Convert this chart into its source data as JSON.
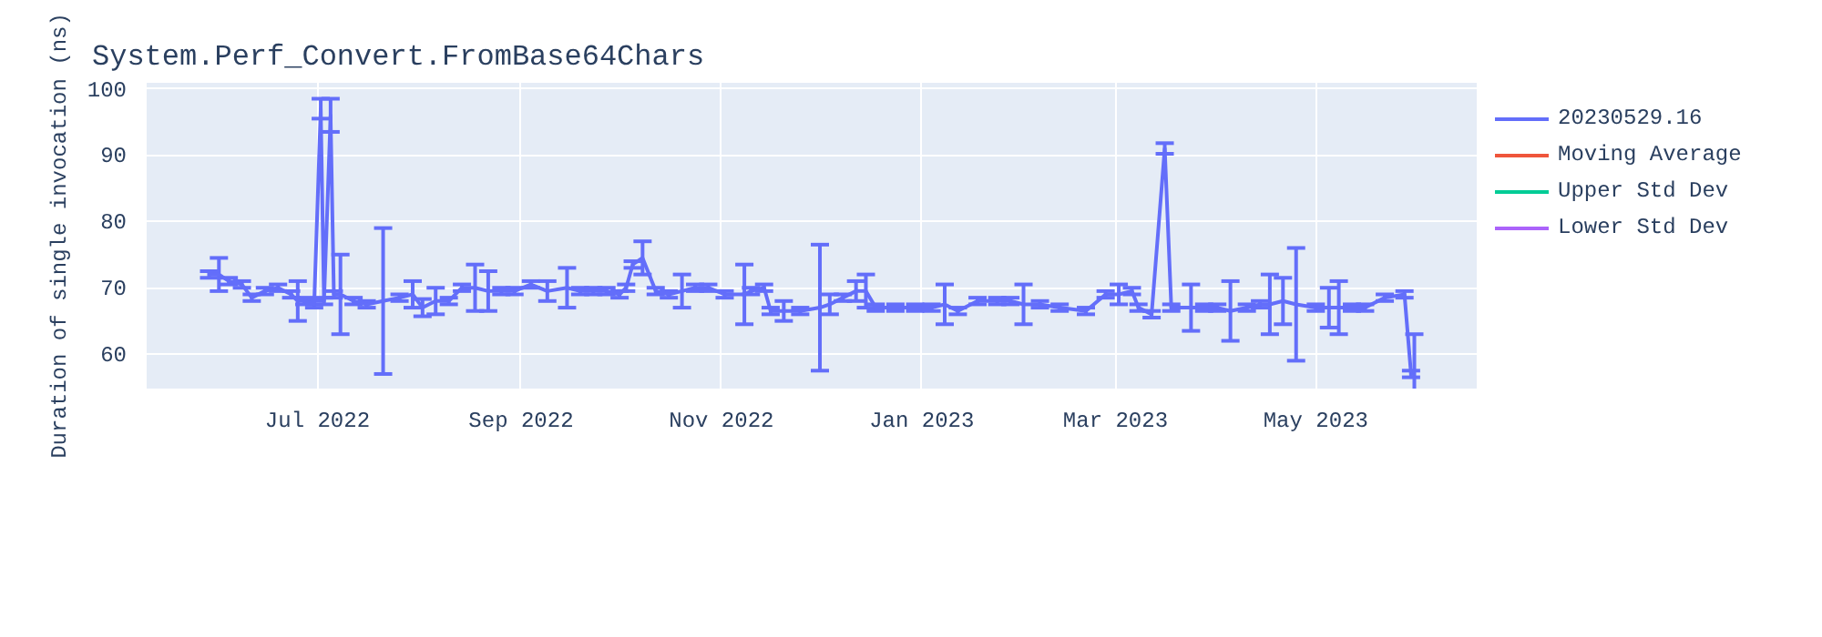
{
  "chart_data": {
    "type": "line",
    "title": "System.Perf_Convert.FromBase64Chars",
    "ylabel": "Duration of single invocation (ns)",
    "x": [
      "2022-05-29",
      "2022-06-01",
      "2022-06-04",
      "2022-06-08",
      "2022-06-11",
      "2022-06-15",
      "2022-06-19",
      "2022-06-23",
      "2022-06-25",
      "2022-06-27",
      "2022-06-30",
      "2022-07-02",
      "2022-07-03",
      "2022-07-05",
      "2022-07-06",
      "2022-07-08",
      "2022-07-12",
      "2022-07-16",
      "2022-07-21",
      "2022-07-26",
      "2022-07-30",
      "2022-08-02",
      "2022-08-06",
      "2022-08-10",
      "2022-08-14",
      "2022-08-18",
      "2022-08-22",
      "2022-08-26",
      "2022-08-30",
      "2022-09-04",
      "2022-09-09",
      "2022-09-15",
      "2022-09-19",
      "2022-09-23",
      "2022-09-27",
      "2022-10-01",
      "2022-10-03",
      "2022-10-05",
      "2022-10-08",
      "2022-10-12",
      "2022-10-16",
      "2022-10-20",
      "2022-10-24",
      "2022-10-28",
      "2022-11-02",
      "2022-11-08",
      "2022-11-10",
      "2022-11-14",
      "2022-11-16",
      "2022-11-20",
      "2022-11-25",
      "2022-12-01",
      "2022-12-04",
      "2022-12-08",
      "2022-12-12",
      "2022-12-15",
      "2022-12-18",
      "2022-12-24",
      "2022-12-30",
      "2023-01-04",
      "2023-01-08",
      "2023-01-12",
      "2023-01-18",
      "2023-01-24",
      "2023-01-28",
      "2023-02-01",
      "2023-02-06",
      "2023-02-12",
      "2023-02-20",
      "2023-02-26",
      "2023-03-02",
      "2023-03-06",
      "2023-03-08",
      "2023-03-12",
      "2023-03-16",
      "2023-03-18",
      "2023-03-24",
      "2023-03-28",
      "2023-04-01",
      "2023-04-05",
      "2023-04-10",
      "2023-04-14",
      "2023-04-17",
      "2023-04-21",
      "2023-04-25",
      "2023-05-01",
      "2023-05-05",
      "2023-05-08",
      "2023-05-12",
      "2023-05-16",
      "2023-05-22",
      "2023-05-28",
      "2023-05-30",
      "2023-05-31"
    ],
    "series": [
      {
        "name": "20230529.16",
        "color": "#636efa",
        "values": [
          72,
          72,
          71,
          70.5,
          68.5,
          69.5,
          70,
          69,
          68,
          68,
          67.5,
          97,
          68,
          96,
          69,
          69,
          68,
          67.5,
          68,
          68.5,
          69,
          67,
          68,
          68,
          70,
          70,
          69.5,
          69.5,
          69.5,
          70.5,
          69.5,
          70,
          69.5,
          69.5,
          69.5,
          69,
          70,
          73.5,
          74.5,
          69.5,
          69,
          69.5,
          70,
          70,
          69,
          69,
          69.5,
          70,
          66.5,
          66.5,
          66.5,
          67,
          67.5,
          68.5,
          69.5,
          69.5,
          67,
          67,
          67,
          67,
          67.5,
          66.5,
          68,
          68,
          68,
          67.5,
          67.5,
          67,
          66.5,
          69,
          69,
          69.5,
          67,
          66,
          91,
          67,
          67,
          67,
          67,
          66.5,
          67,
          67.5,
          67.5,
          68,
          67.5,
          67,
          67,
          67,
          67,
          67,
          68.5,
          69,
          57,
          57.5
        ],
        "errors": [
          0.5,
          2.5,
          0.5,
          0.5,
          0.5,
          0.5,
          0.5,
          0.5,
          3,
          0.5,
          0.5,
          1.5,
          0.5,
          2.5,
          0.5,
          6,
          0.5,
          0.5,
          11,
          0.5,
          2,
          1.3,
          2,
          0.5,
          0.5,
          3.5,
          3,
          0.5,
          0.5,
          0.5,
          1.5,
          3,
          0.5,
          0.5,
          0.5,
          0.5,
          0.5,
          0.5,
          2.5,
          0.5,
          0.5,
          2.5,
          0.5,
          0.5,
          0.5,
          4.5,
          0.5,
          0.5,
          0.5,
          1.5,
          0.5,
          9.5,
          1.5,
          0.5,
          1.5,
          2.5,
          0.5,
          0.5,
          0.5,
          0.5,
          3,
          0.5,
          0.5,
          0.5,
          0.5,
          3,
          0.5,
          0.5,
          0.5,
          0.5,
          1.5,
          0.5,
          0.5,
          0.5,
          0.8,
          0.5,
          3.5,
          0.5,
          0.5,
          4.5,
          0.5,
          0.5,
          4.5,
          3.5,
          8.5,
          0.5,
          3,
          4,
          0.5,
          0.5,
          0.5,
          0.5,
          0.5,
          5.5
        ]
      },
      {
        "name": "Moving Average",
        "color": "#ef553b",
        "values": [
          null,
          null,
          null,
          null,
          null,
          null,
          null,
          null,
          null,
          null,
          null,
          null,
          null,
          null,
          null,
          null,
          null,
          null,
          null,
          null,
          null,
          null,
          null,
          null,
          null,
          null,
          null,
          null,
          null,
          null,
          null,
          null,
          null,
          null,
          null,
          null,
          null,
          null,
          null,
          null,
          null,
          null,
          null,
          null,
          null,
          null,
          null,
          null,
          null,
          null,
          null,
          null,
          null,
          null,
          null,
          null,
          null,
          null,
          null,
          null,
          null,
          null,
          null,
          null,
          null,
          null,
          null,
          null,
          null,
          null,
          null,
          null,
          null,
          null,
          null,
          null,
          null,
          null,
          null,
          null,
          null,
          null,
          null,
          null,
          null,
          null,
          null,
          null,
          null,
          null,
          null,
          null,
          null,
          null
        ]
      },
      {
        "name": "Upper Std Dev",
        "color": "#00cc96",
        "values": [
          null,
          null,
          null,
          null,
          null,
          null,
          null,
          null,
          null,
          null,
          null,
          null,
          null,
          null,
          null,
          null,
          null,
          null,
          null,
          null,
          null,
          null,
          null,
          null,
          null,
          null,
          null,
          null,
          null,
          null,
          null,
          null,
          null,
          null,
          null,
          null,
          null,
          null,
          null,
          null,
          null,
          null,
          null,
          null,
          null,
          null,
          null,
          null,
          null,
          null,
          null,
          null,
          null,
          null,
          null,
          null,
          null,
          null,
          null,
          null,
          null,
          null,
          null,
          null,
          null,
          null,
          null,
          null,
          null,
          null,
          null,
          null,
          null,
          null,
          null,
          null,
          null,
          null,
          null,
          null,
          null,
          null,
          null,
          null,
          null,
          null,
          null,
          null,
          null,
          null,
          null,
          null,
          null,
          null
        ]
      },
      {
        "name": "Lower Std Dev",
        "color": "#ab63fa",
        "values": [
          null,
          null,
          null,
          null,
          null,
          null,
          null,
          null,
          null,
          null,
          null,
          null,
          null,
          null,
          null,
          null,
          null,
          null,
          null,
          null,
          null,
          null,
          null,
          null,
          null,
          null,
          null,
          null,
          null,
          null,
          null,
          null,
          null,
          null,
          null,
          null,
          null,
          null,
          null,
          null,
          null,
          null,
          null,
          null,
          null,
          null,
          null,
          null,
          null,
          null,
          null,
          null,
          null,
          null,
          null,
          null,
          null,
          null,
          null,
          null,
          null,
          null,
          null,
          null,
          null,
          null,
          null,
          null,
          null,
          null,
          null,
          null,
          null,
          null,
          null,
          null,
          null,
          null,
          null,
          null,
          null,
          null,
          null,
          null,
          null,
          null,
          null,
          null,
          null,
          null,
          null,
          null,
          null,
          null
        ]
      }
    ],
    "xlim": [
      "2022-05-10",
      "2023-06-19"
    ],
    "xticks": [
      {
        "value": "2022-07-01",
        "label": "Jul 2022"
      },
      {
        "value": "2022-09-01",
        "label": "Sep 2022"
      },
      {
        "value": "2022-11-01",
        "label": "Nov 2022"
      },
      {
        "value": "2023-01-01",
        "label": "Jan 2023"
      },
      {
        "value": "2023-03-01",
        "label": "Mar 2023"
      },
      {
        "value": "2023-05-01",
        "label": "May 2023"
      }
    ],
    "ylim": [
      54.8,
      100.9
    ],
    "yticks": [
      60,
      70,
      80,
      90,
      100
    ],
    "grid": true,
    "legend": "top right",
    "marker": "none",
    "line_style": "solid"
  }
}
